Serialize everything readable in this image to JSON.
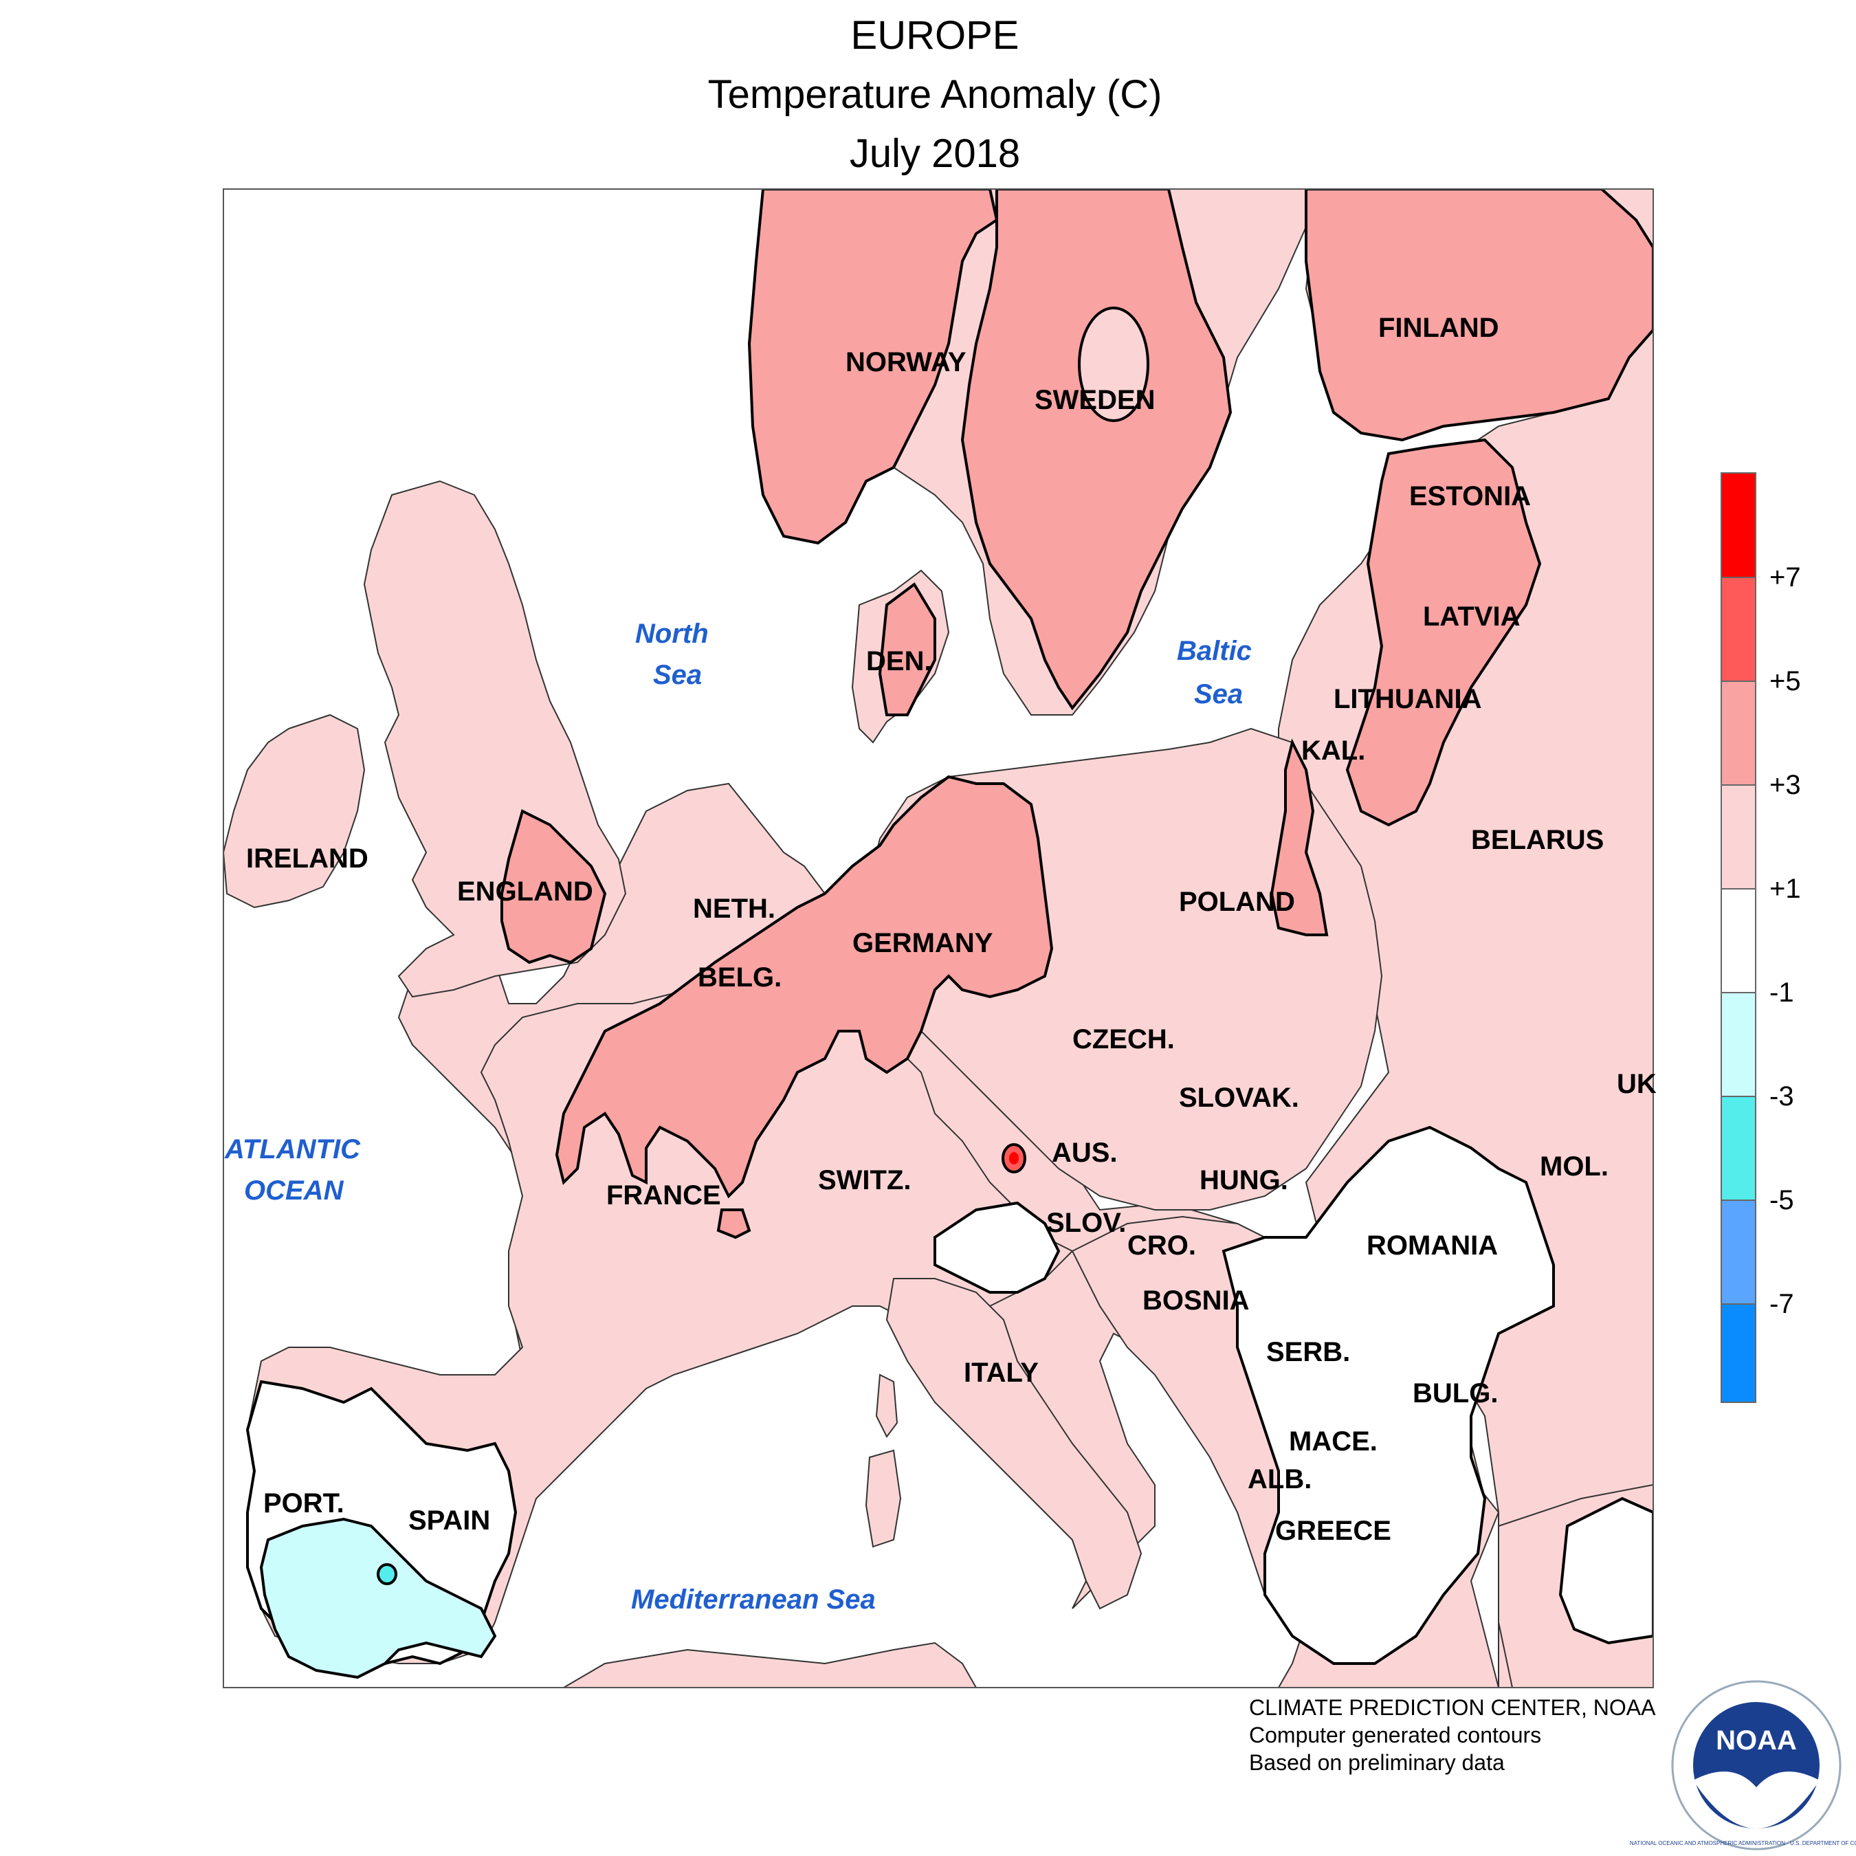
{
  "title": {
    "line1": "EUROPE",
    "line2": "Temperature Anomaly (C)",
    "line3": "July 2018"
  },
  "map": {
    "countries": [
      "NORWAY",
      "SWEDEN",
      "FINLAND",
      "ESTONIA",
      "LATVIA",
      "LITHUANIA",
      "KAL.",
      "BELARUS",
      "POLAND",
      "DEN.",
      "IRELAND",
      "ENGLAND",
      "NETH.",
      "BELG.",
      "GERMANY",
      "CZECH.",
      "SLOVAK.",
      "AUS.",
      "HUNG.",
      "SWITZ.",
      "FRANCE",
      "SLOV.",
      "CRO.",
      "ROMANIA",
      "MOL.",
      "BOSNIA",
      "SERB.",
      "ITALY",
      "BULG.",
      "MACE.",
      "ALB.",
      "GREECE",
      "PORT.",
      "SPAIN",
      "UK"
    ],
    "seas": {
      "north_sea_1": "North",
      "north_sea_2": "Sea",
      "baltic_sea_1": "Baltic",
      "baltic_sea_2": "Sea",
      "atlantic_1": "ATLANTIC",
      "atlantic_2": "OCEAN",
      "mediterranean": "Mediterranean Sea"
    }
  },
  "legend": {
    "labels": [
      "+7",
      "+5",
      "+3",
      "+1",
      "-1",
      "-3",
      "-5",
      "-7"
    ],
    "colors": [
      "#ff0000",
      "#ff5a5a",
      "#f9a3a3",
      "#fbd5d5",
      "#ffffff",
      "#ccfdfd",
      "#55ecec",
      "#5aa5ff",
      "#0a8cff"
    ]
  },
  "credit": {
    "line1": "CLIMATE PREDICTION CENTER, NOAA",
    "line2": "Computer generated contours",
    "line3": "Based on preliminary data"
  },
  "logo": {
    "center_text": "NOAA",
    "ring_text": "NATIONAL OCEANIC AND ATMOSPHERIC ADMINISTRATION · U.S. DEPARTMENT OF COMMERCE"
  }
}
